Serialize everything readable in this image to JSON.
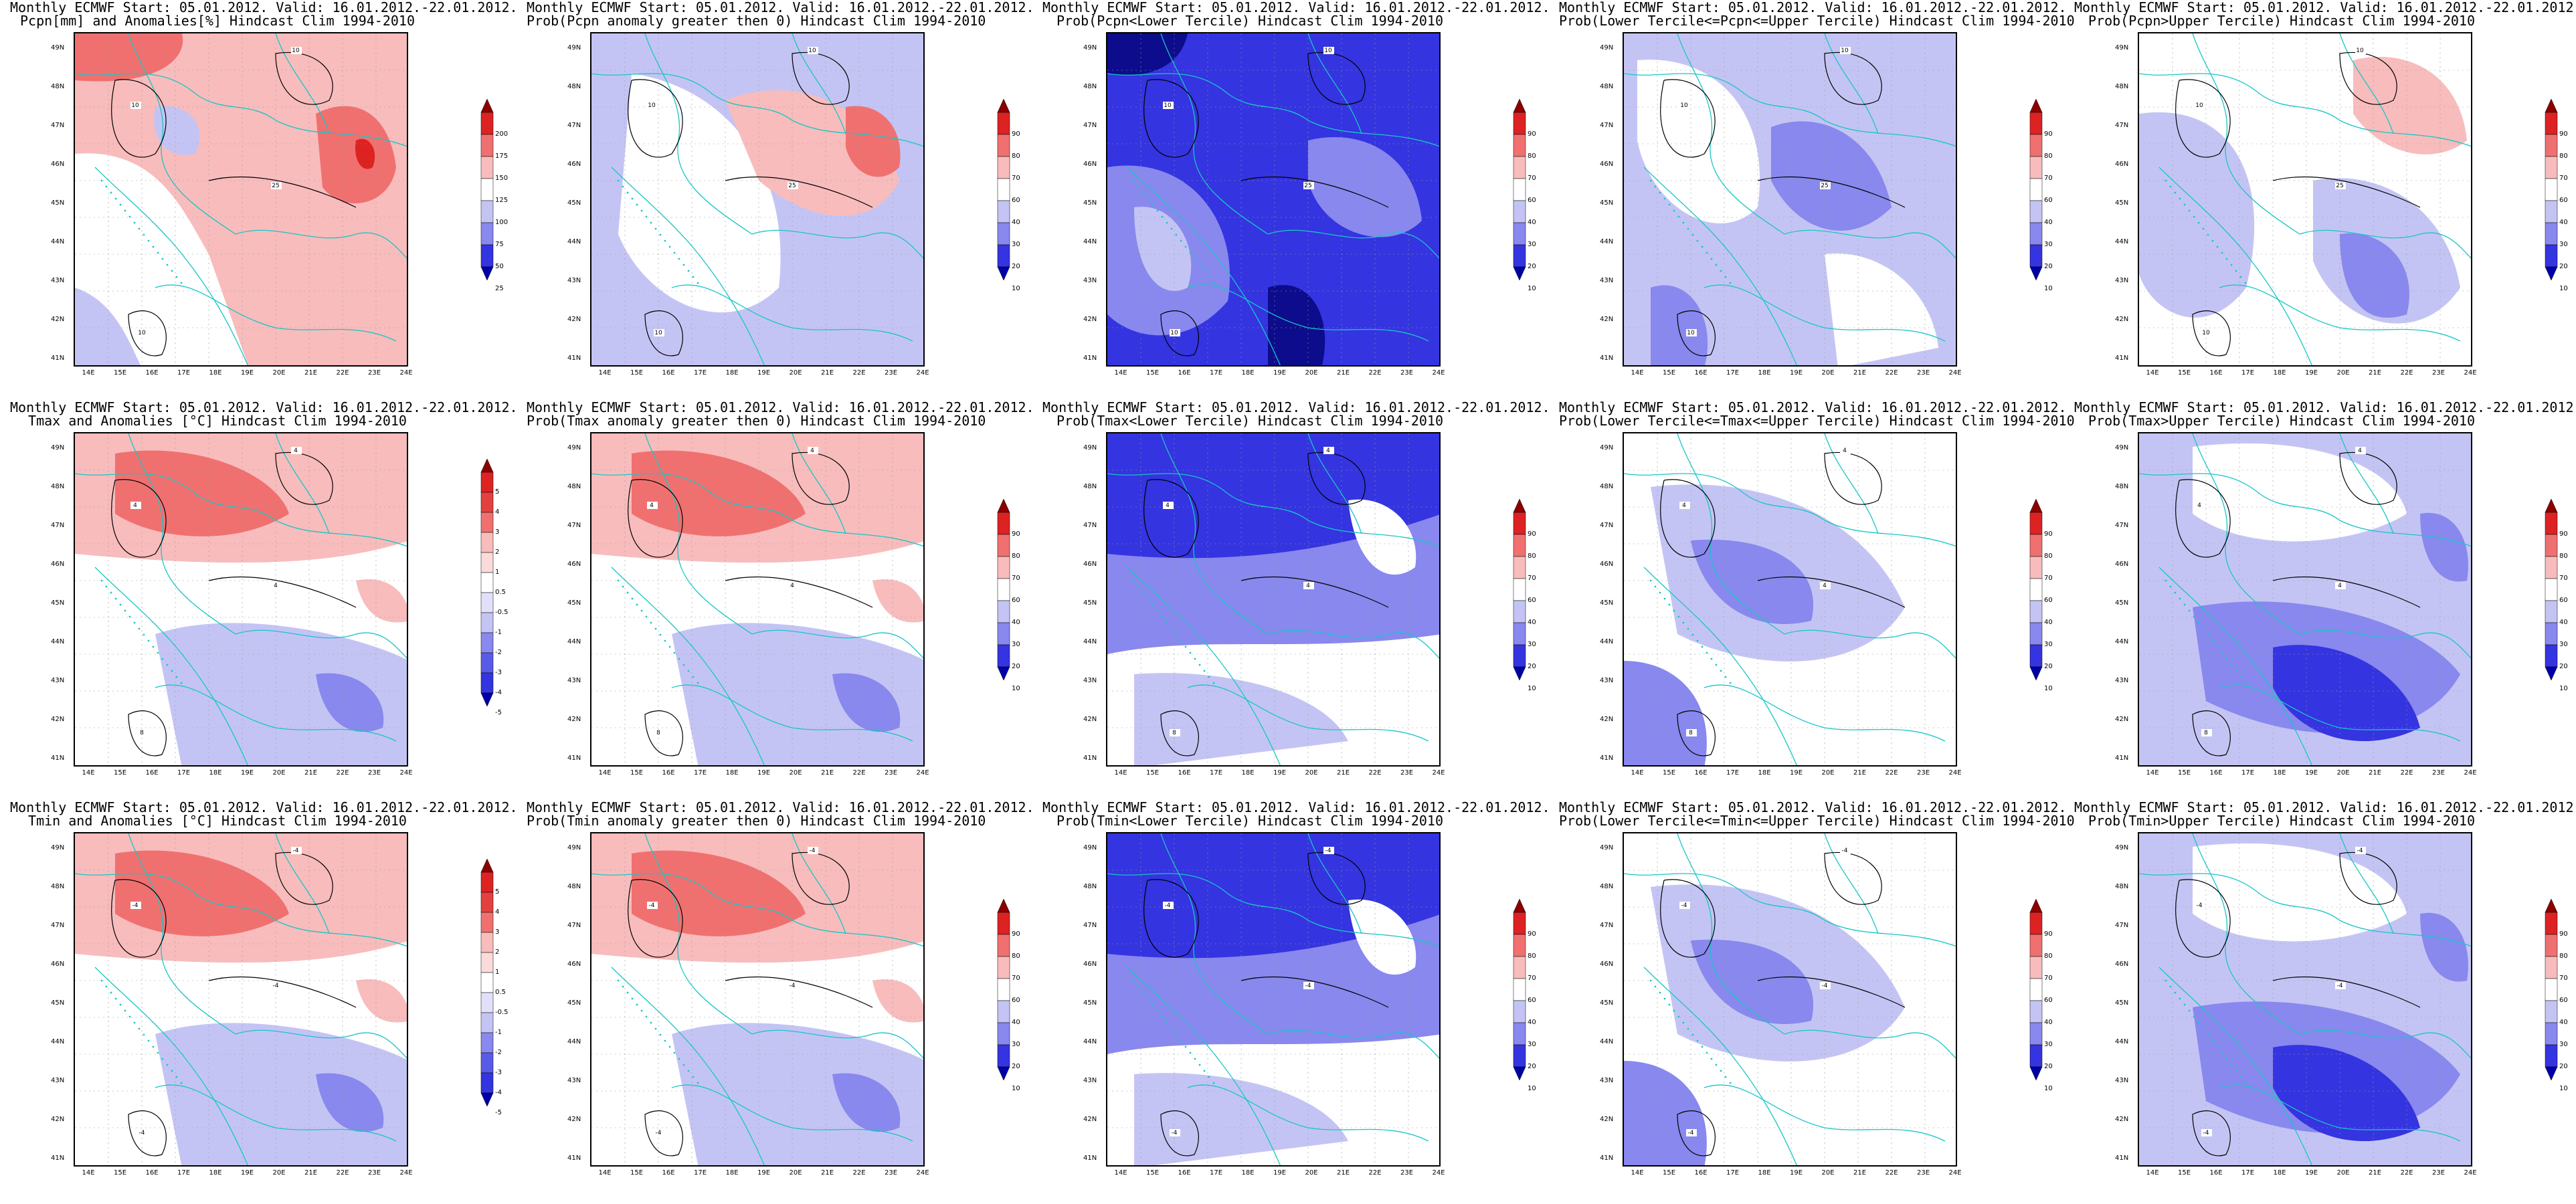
{
  "title_line1": "Monthly ECMWF Start: 05.01.2012. Valid: 16.01.2012.-22.01.2012.",
  "lat_labels": [
    "49N",
    "48N",
    "47N",
    "46N",
    "45N",
    "44N",
    "43N",
    "42N",
    "41N"
  ],
  "lon_labels": [
    "14E",
    "15E",
    "16E",
    "17E",
    "18E",
    "19E",
    "20E",
    "21E",
    "22E",
    "23E",
    "24E"
  ],
  "scales": {
    "pcpn": [
      "200",
      "175",
      "150",
      "125",
      "100",
      "75",
      "50",
      "25"
    ],
    "temp": [
      "5",
      "4",
      "3",
      "2",
      "1",
      "0.5",
      "-0.5",
      "-1",
      "-2",
      "-3",
      "-4",
      "-5"
    ],
    "prob": [
      "90",
      "80",
      "70",
      "60",
      "40",
      "30",
      "20",
      "10"
    ]
  },
  "colors": {
    "red_dark": "#dd2222",
    "red_mid": "#f07070",
    "red_light": "#f8bcbc",
    "white": "#ffffff",
    "blue_light": "#c4c4f4",
    "blue_mid": "#8888ee",
    "blue_strong": "#3434e0",
    "blue_dark": "#0c0c8c",
    "border_line": "#18c6c6",
    "contour_line": "#000000"
  },
  "panels": [
    {
      "subtitle": "Pcpn[mm] and Anomalies[%] Hindcast Clim 1994-2010",
      "scale": "pcpn",
      "contour_labels": [
        "10",
        "10",
        "25",
        "10"
      ]
    },
    {
      "subtitle": "Prob(Pcpn anomaly greater then 0) Hindcast Clim 1994-2010",
      "scale": "prob",
      "contour_labels": [
        "10",
        "10",
        "25",
        "10"
      ]
    },
    {
      "subtitle": "Prob(Pcpn<Lower Tercile) Hindcast Clim 1994-2010",
      "scale": "prob",
      "contour_labels": [
        "10",
        "10",
        "25",
        "10"
      ]
    },
    {
      "subtitle": "Prob(Lower Tercile<=Pcpn<=Upper Tercile) Hindcast Clim 1994-2010",
      "scale": "prob",
      "contour_labels": [
        "10",
        "10",
        "25",
        "10"
      ]
    },
    {
      "subtitle": "Prob(Pcpn>Upper Tercile) Hindcast Clim 1994-2010",
      "scale": "prob",
      "contour_labels": [
        "10",
        "10",
        "25",
        "10"
      ]
    },
    {
      "subtitle": "Tmax and Anomalies [°C] Hindcast Clim 1994-2010",
      "scale": "temp",
      "contour_labels": [
        "4",
        "4",
        "4",
        "8"
      ]
    },
    {
      "subtitle": "Prob(Tmax anomaly greater then 0) Hindcast Clim 1994-2010",
      "scale": "prob",
      "contour_labels": [
        "4",
        "4",
        "4",
        "8"
      ]
    },
    {
      "subtitle": "Prob(Tmax<Lower Tercile) Hindcast Clim 1994-2010",
      "scale": "prob",
      "contour_labels": [
        "4",
        "4",
        "4",
        "8"
      ]
    },
    {
      "subtitle": "Prob(Lower Tercile<=Tmax<=Upper Tercile) Hindcast Clim 1994-2010",
      "scale": "prob",
      "contour_labels": [
        "4",
        "4",
        "4",
        "8"
      ]
    },
    {
      "subtitle": "Prob(Tmax>Upper Tercile) Hindcast Clim 1994-2010",
      "scale": "prob",
      "contour_labels": [
        "4",
        "4",
        "4",
        "8"
      ]
    },
    {
      "subtitle": "Tmin and Anomalies [°C] Hindcast Clim 1994-2010",
      "scale": "temp",
      "contour_labels": [
        "-4",
        "-4",
        "-4",
        "-4"
      ]
    },
    {
      "subtitle": "Prob(Tmin anomaly greater then 0) Hindcast Clim 1994-2010",
      "scale": "prob",
      "contour_labels": [
        "-4",
        "-4",
        "-4",
        "-4"
      ]
    },
    {
      "subtitle": "Prob(Tmin<Lower Tercile) Hindcast Clim 1994-2010",
      "scale": "prob",
      "contour_labels": [
        "-4",
        "-4",
        "-4",
        "-4"
      ]
    },
    {
      "subtitle": "Prob(Lower Tercile<=Tmin<=Upper Tercile) Hindcast Clim 1994-2010",
      "scale": "prob",
      "contour_labels": [
        "-4",
        "-4",
        "-4",
        "-4"
      ]
    },
    {
      "subtitle": "Prob(Tmin>Upper Tercile) Hindcast Clim 1994-2010",
      "scale": "prob",
      "contour_labels": [
        "-4",
        "-4",
        "-4",
        "-4"
      ]
    }
  ]
}
